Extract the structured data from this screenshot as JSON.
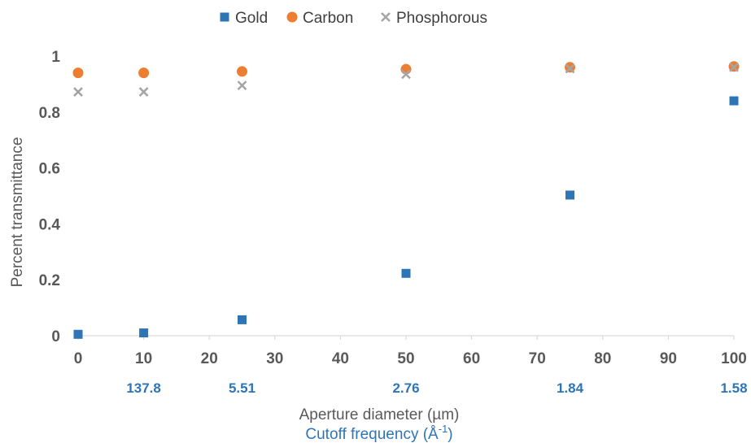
{
  "chart_data": {
    "type": "scatter",
    "xlabel": "Aperture diameter (µm)",
    "xlabel2": "Cutoff frequency (Å",
    "xlabel2_sup": "-1",
    "xlabel2_close": ")",
    "ylabel": "Percent transmittance",
    "xlim": [
      0,
      100
    ],
    "ylim": [
      0,
      1
    ],
    "x_ticks": [
      0,
      10,
      20,
      30,
      40,
      50,
      60,
      70,
      80,
      90,
      100
    ],
    "x_tick_labels": [
      "0",
      "10",
      "20",
      "30",
      "40",
      "50",
      "60",
      "70",
      "80",
      "90",
      "100"
    ],
    "y_ticks": [
      0,
      0.2,
      0.4,
      0.6,
      0.8,
      1
    ],
    "y_tick_labels": [
      "0",
      "0.2",
      "0.4",
      "0.6",
      "0.8",
      "1"
    ],
    "cutoff_labels": [
      {
        "x": 10,
        "label": "137.8"
      },
      {
        "x": 25,
        "label": "5.51"
      },
      {
        "x": 50,
        "label": "2.76"
      },
      {
        "x": 75,
        "label": "1.84"
      },
      {
        "x": 100,
        "label": "1.58"
      }
    ],
    "grid": false,
    "legend_position": "top-center",
    "series": [
      {
        "name": "Gold",
        "marker": "square",
        "color": "#2E75B6",
        "points": [
          [
            0,
            0.005
          ],
          [
            10,
            0.01
          ],
          [
            25,
            0.057
          ],
          [
            50,
            0.223
          ],
          [
            75,
            0.503
          ],
          [
            100,
            0.84
          ]
        ]
      },
      {
        "name": "Carbon",
        "marker": "circle",
        "color": "#ED7D31",
        "points": [
          [
            0,
            0.94
          ],
          [
            10,
            0.94
          ],
          [
            25,
            0.945
          ],
          [
            50,
            0.953
          ],
          [
            75,
            0.96
          ],
          [
            100,
            0.963
          ]
        ]
      },
      {
        "name": "Phosphorous",
        "marker": "x",
        "color": "#A5A5A5",
        "points": [
          [
            0,
            0.872
          ],
          [
            10,
            0.872
          ],
          [
            25,
            0.895
          ],
          [
            50,
            0.935
          ],
          [
            75,
            0.955
          ],
          [
            100,
            0.96
          ]
        ]
      }
    ]
  }
}
